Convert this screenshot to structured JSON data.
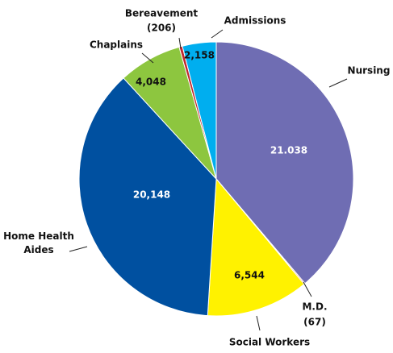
{
  "chart_data": {
    "type": "pie",
    "categories": [
      "Nursing",
      "M.D.",
      "Social Workers",
      "Home Health Aides",
      "Chaplains",
      "Bereavement",
      "Admissions"
    ],
    "values": [
      21038,
      67,
      6544,
      20148,
      4048,
      206,
      2158
    ],
    "value_labels": [
      "21.038",
      "(67)",
      "6,544",
      "20,148",
      "4,048",
      "(206)",
      "2,158"
    ],
    "colors": [
      "#6f6db3",
      "#c0272d",
      "#fff200",
      "#0050a0",
      "#8dc63f",
      "#c0272d",
      "#00aeef"
    ]
  }
}
